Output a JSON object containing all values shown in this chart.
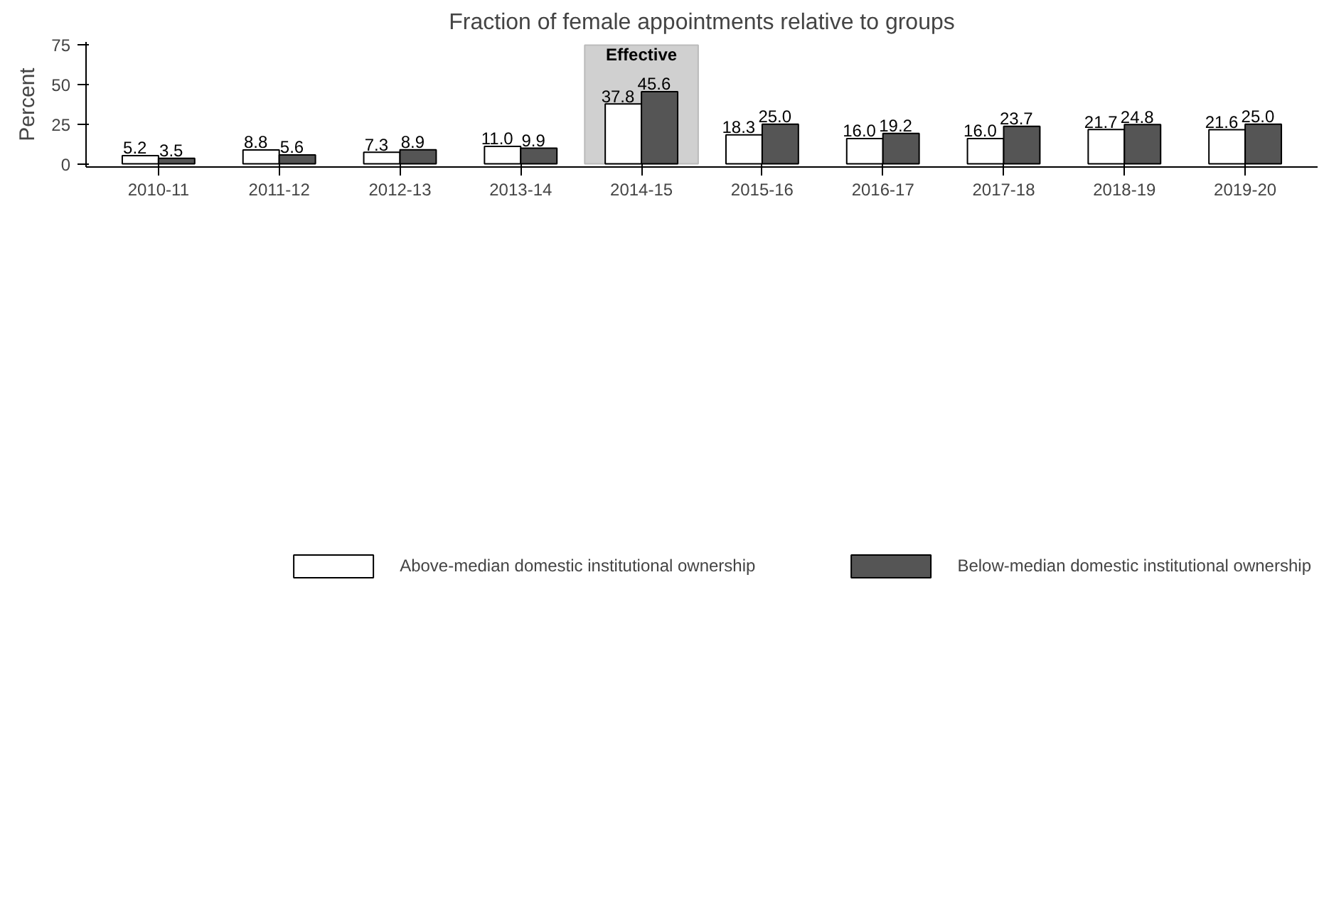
{
  "chart_data": {
    "type": "bar",
    "title": "Fraction of female appointments relative to groups",
    "ylabel": "Percent",
    "categories": [
      "2010-11",
      "2011-12",
      "2012-13",
      "2013-14",
      "2014-15",
      "2015-16",
      "2016-17",
      "2017-18",
      "2018-19",
      "2019-20"
    ],
    "series": [
      {
        "name": "Above-median domestic institutional ownership",
        "color": "#ffffff",
        "values": [
          5.2,
          8.8,
          7.3,
          11.0,
          37.8,
          18.3,
          16.0,
          16.0,
          21.7,
          21.6
        ],
        "value_labels": [
          "5.2",
          "8.8",
          "7.3",
          "11.0",
          "37.8",
          "18.3",
          "16.0",
          "16.0",
          "21.7",
          "21.6"
        ]
      },
      {
        "name": "Below-median domestic institutional ownership",
        "color": "#555555",
        "values": [
          3.5,
          5.6,
          8.9,
          9.9,
          45.6,
          25.0,
          19.2,
          23.7,
          24.8,
          25.0
        ],
        "value_labels": [
          "3.5",
          "5.6",
          "8.9",
          "9.9",
          "45.6",
          "25.0",
          "19.2",
          "23.7",
          "24.8",
          "25.0"
        ]
      }
    ],
    "ylim": [
      -2,
      77
    ],
    "yticks": [
      0,
      25,
      50,
      75
    ],
    "bands": [
      {
        "axis": "x",
        "from": "2014-15",
        "to": "2014-15",
        "label": "Effective",
        "color": "#d0d0d0"
      }
    ],
    "grid": false,
    "legend": "bottom"
  }
}
